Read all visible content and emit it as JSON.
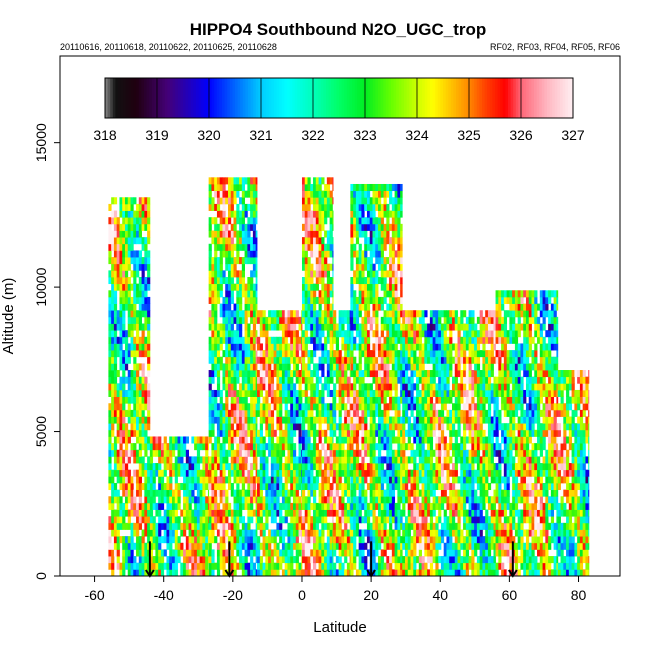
{
  "chart_data": {
    "type": "heatmap",
    "title": "HIPPO4 Southbound N2O_UGC_trop",
    "subtitle_left": "20110616, 20110618, 20110622, 20110625, 20110628",
    "subtitle_right": "RF02, RF03, RF04, RF05, RF06",
    "xlabel": "Latitude",
    "ylabel": "Altitude (m)",
    "xlim": [
      -70,
      92
    ],
    "ylim": [
      0,
      18000
    ],
    "xticks": [
      -60,
      -40,
      -20,
      0,
      20,
      40,
      60,
      80
    ],
    "yticks": [
      0,
      5000,
      10000,
      15000
    ],
    "colorbar": {
      "min": 318,
      "max": 327,
      "tick_labels": [
        "318",
        "319",
        "320",
        "321",
        "322",
        "323",
        "324",
        "325",
        "326",
        "327"
      ],
      "stops": [
        {
          "v": 318.0,
          "c": "#8a8a8a"
        },
        {
          "v": 318.2,
          "c": "#111111"
        },
        {
          "v": 318.6,
          "c": "#200010"
        },
        {
          "v": 319.2,
          "c": "#440077"
        },
        {
          "v": 319.6,
          "c": "#2200bb"
        },
        {
          "v": 320.0,
          "c": "#0000ff"
        },
        {
          "v": 320.5,
          "c": "#0066ff"
        },
        {
          "v": 321.0,
          "c": "#00ccff"
        },
        {
          "v": 321.5,
          "c": "#00ffff"
        },
        {
          "v": 322.0,
          "c": "#00ffbb"
        },
        {
          "v": 322.5,
          "c": "#00ff66"
        },
        {
          "v": 323.0,
          "c": "#00ee22"
        },
        {
          "v": 323.5,
          "c": "#66ff00"
        },
        {
          "v": 324.0,
          "c": "#ccff00"
        },
        {
          "v": 324.3,
          "c": "#ffff00"
        },
        {
          "v": 324.7,
          "c": "#ffbb00"
        },
        {
          "v": 325.0,
          "c": "#ff8800"
        },
        {
          "v": 325.3,
          "c": "#ff4400"
        },
        {
          "v": 325.7,
          "c": "#ff0000"
        },
        {
          "v": 326.0,
          "c": "#ff6677"
        },
        {
          "v": 326.5,
          "c": "#ffb6c1"
        },
        {
          "v": 327.0,
          "c": "#fff0f2"
        }
      ]
    },
    "segment_markers": [
      -44,
      -21,
      20,
      61
    ],
    "series": [
      {
        "name": "column",
        "lat_min": -56,
        "lat_max": -44,
        "alt_top": 13000
      },
      {
        "name": "column",
        "lat_min": -44,
        "lat_max": -27,
        "alt_top": 4800
      },
      {
        "name": "column",
        "lat_min": -27,
        "lat_max": -13,
        "alt_top": 13800
      },
      {
        "name": "column",
        "lat_min": -13,
        "lat_max": 0,
        "alt_top": 9000
      },
      {
        "name": "column",
        "lat_min": 0,
        "lat_max": 9,
        "alt_top": 13800
      },
      {
        "name": "column",
        "lat_min": 9,
        "lat_max": 14,
        "alt_top": 9000
      },
      {
        "name": "column",
        "lat_min": 14,
        "lat_max": 29,
        "alt_top": 13500
      },
      {
        "name": "column",
        "lat_min": 29,
        "lat_max": 56,
        "alt_top": 9000
      },
      {
        "name": "column",
        "lat_min": 56,
        "lat_max": 74,
        "alt_top": 9700
      },
      {
        "name": "column",
        "lat_min": 74,
        "lat_max": 83,
        "alt_top": 7000
      }
    ]
  }
}
